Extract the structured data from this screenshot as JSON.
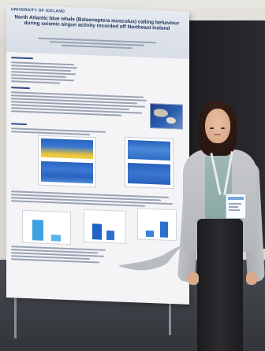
{
  "poster": {
    "institution": "UNIVERSITY OF ICELAND",
    "title": "North Atlantic blue whale (Balaenoptera musculus) calling behaviour during seismic airgun activity recorded off Northeast Iceland"
  },
  "colors": {
    "poster_bg": "#f4f4f6",
    "title_color": "#1b2f5a",
    "heatmap_yellow": "#e8c23a",
    "heatmap_blue": "#1f5fb8",
    "bar_blue": "#1f63c6",
    "cardigan": "#bfc1c4",
    "top": "#9fb9b5",
    "pants": "#222226",
    "booth_panel": "#222228",
    "carpet": "#3f4148"
  },
  "icons": [
    "map-figure",
    "spectrogram-figure",
    "bar-chart-figure",
    "whale-fluke-figure",
    "name-badge"
  ]
}
